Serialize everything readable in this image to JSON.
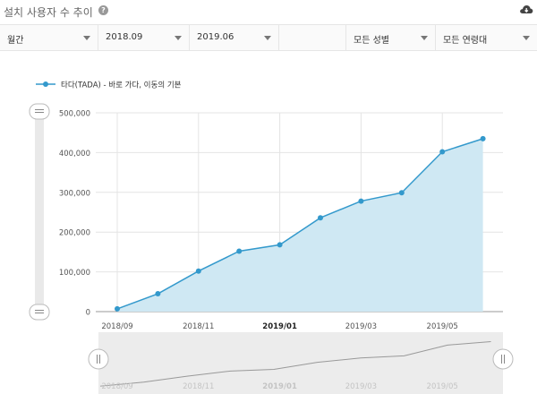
{
  "header": {
    "title": "설치 사용자 수 추이",
    "help_glyph": "?"
  },
  "filters": {
    "period": "월간",
    "start": "2018.09",
    "end": "2019.06",
    "blank": "",
    "gender": "모든 성별",
    "age": "모든 연령대"
  },
  "colors": {
    "series": "#3399cc",
    "fill": "#cfe8f3",
    "navigator_line": "#999999"
  },
  "icons": {
    "download": "cloud-download-icon",
    "help": "help-icon"
  },
  "chart_data": {
    "type": "area",
    "title": "",
    "xlabel": "",
    "ylabel": "",
    "ylim": [
      0,
      500000
    ],
    "yticks": [
      "0",
      "100,000",
      "200,000",
      "300,000",
      "400,000",
      "500,000"
    ],
    "yticks_values": [
      0,
      100000,
      200000,
      300000,
      400000,
      500000
    ],
    "x": [
      "2018-09",
      "2018-10",
      "2018-11",
      "2018-12",
      "2019-01",
      "2019-02",
      "2019-03",
      "2019-04",
      "2019-05",
      "2019-06"
    ],
    "xticks": [
      "2018/09",
      "2018/11",
      "2019/01",
      "2019/03",
      "2019/05"
    ],
    "xticks_bold": [
      false,
      false,
      true,
      false,
      false
    ],
    "series": [
      {
        "name": "타다(TADA) - 바로 가다, 이동의 기본",
        "values": [
          7000,
          45000,
          102000,
          152000,
          168000,
          236000,
          278000,
          299000,
          402000,
          435000
        ]
      }
    ],
    "legend_position": "top-left",
    "grid": true
  }
}
